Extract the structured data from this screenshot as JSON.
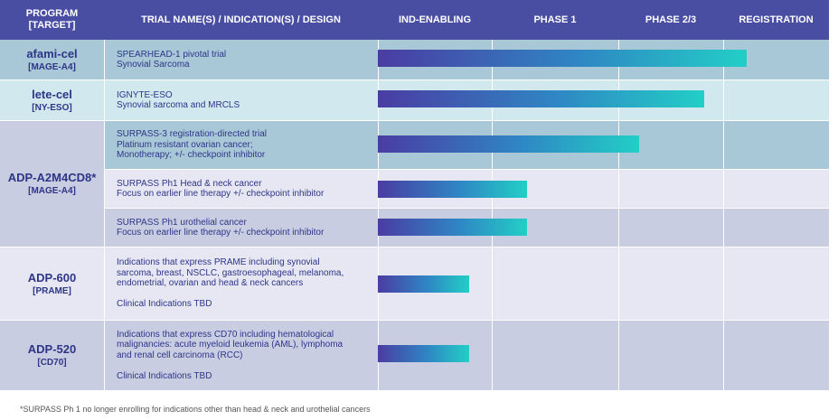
{
  "header": {
    "program": [
      "PROGRAM",
      "[TARGET]"
    ],
    "trial": "TRIAL NAME(S) / INDICATION(S) / DESIGN",
    "stages": [
      "IND-ENABLING",
      "PHASE 1",
      "PHASE  2/3",
      "REGISTRATION"
    ]
  },
  "programs": [
    {
      "name": "afami-cel",
      "target": "[MAGE-A4]"
    },
    {
      "name": "lete-cel",
      "target": "[NY-ESO]"
    },
    {
      "name": "ADP-A2M4CD8*",
      "target": "[MAGE-A4]"
    },
    {
      "name": "ADP-600",
      "target": "[PRAME]"
    },
    {
      "name": "ADP-520",
      "target": "[CD70]"
    }
  ],
  "trials": [
    {
      "lines": [
        "SPEARHEAD-1 pivotal trial",
        "Synovial Sarcoma"
      ]
    },
    {
      "lines": [
        "IGNYTE-ESO",
        "Synovial sarcoma and MRCLS"
      ]
    },
    {
      "lines": [
        "SURPASS-3 registration-directed trial",
        "Platinum resistant ovarian cancer;",
        "Monotherapy; +/- checkpoint inhibitor"
      ]
    },
    {
      "lines": [
        "SURPASS Ph1 Head & neck cancer",
        "Focus on earlier line therapy +/- checkpoint inhibitor"
      ]
    },
    {
      "lines": [
        "SURPASS Ph1 urothelial cancer",
        "Focus on earlier line therapy +/- checkpoint inhibitor"
      ]
    },
    {
      "lines": [
        "Indications that express PRAME including synovial",
        "sarcoma, breast, NSCLC, gastroesophageal, melanoma,",
        "endometrial, ovarian and head & neck cancers",
        "",
        "Clinical Indications TBD"
      ]
    },
    {
      "lines": [
        "Indications that express CD70 including hematological",
        "malignancies: acute myeloid leukemia (AML), lymphoma",
        "and renal cell carcinoma (RCC)",
        "",
        "Clinical Indications TBD"
      ]
    }
  ],
  "footnote": "*SURPASS Ph 1 no longer enrolling for indications other than head & neck and urothelial cancers",
  "colors": {
    "header": "#4a4ea2",
    "text": "#2e3587",
    "bar_start": "#4a3ca3",
    "bar_end": "#22cfc6"
  },
  "chart_data": {
    "type": "bar",
    "orientation": "horizontal",
    "stage_axis": [
      "IND-ENABLING",
      "PHASE 1",
      "PHASE  2/3",
      "REGISTRATION"
    ],
    "stage_range": [
      0,
      4
    ],
    "categories": [
      "SPEARHEAD-1 pivotal trial",
      "IGNYTE-ESO",
      "SURPASS-3 registration-directed trial",
      "SURPASS Ph1 Head & neck cancer",
      "SURPASS Ph1 urothelial cancer",
      "ADP-600",
      "ADP-520"
    ],
    "values": [
      3.22,
      2.82,
      2.2,
      1.28,
      1.28,
      0.8,
      0.8
    ]
  }
}
